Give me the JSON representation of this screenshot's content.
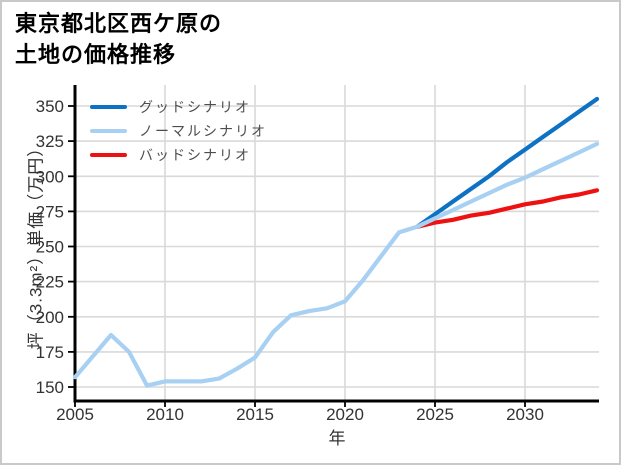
{
  "page": {
    "title_line1": "東京都北区西ケ原の",
    "title_line2": "土地の価格推移"
  },
  "chart_data": {
    "type": "line",
    "title": "東京都北区西ケ原の土地の価格推移",
    "xlabel": "年",
    "ylabel": "坪（3.3m²）単価（万円）",
    "xlim": [
      2005,
      2034
    ],
    "ylim": [
      150,
      350
    ],
    "x_ticks": [
      2005,
      2010,
      2015,
      2020,
      2025,
      2030
    ],
    "y_ticks": [
      150,
      175,
      200,
      225,
      250,
      275,
      300,
      325,
      350
    ],
    "grid": true,
    "legend_position": "top-left",
    "colors": {
      "grid": "#d9d9d9",
      "axis": "#000000",
      "tick_label": "#333333",
      "legend_text": "#4d4d4d"
    },
    "series": [
      {
        "key": "good",
        "name": "グッドシナリオ",
        "color": "#0e72c4",
        "x": [
          2024,
          2025,
          2026,
          2027,
          2028,
          2029,
          2030,
          2031,
          2032,
          2033,
          2034
        ],
        "values": [
          264,
          273,
          282,
          291,
          300,
          310,
          319,
          328,
          337,
          346,
          355
        ]
      },
      {
        "key": "normal",
        "name": "ノーマルシナリオ",
        "color": "#a7d0f3",
        "x": [
          2005,
          2006,
          2007,
          2008,
          2009,
          2010,
          2011,
          2012,
          2013,
          2014,
          2015,
          2016,
          2017,
          2018,
          2019,
          2020,
          2021,
          2022,
          2023,
          2024,
          2025,
          2026,
          2027,
          2028,
          2029,
          2030,
          2031,
          2032,
          2033,
          2034
        ],
        "values": [
          157,
          172,
          187,
          175,
          151,
          154,
          154,
          154,
          156,
          163,
          171,
          189,
          201,
          204,
          206,
          211,
          226,
          243,
          260,
          264,
          270,
          276,
          282,
          288,
          294,
          299,
          305,
          311,
          317,
          323
        ]
      },
      {
        "key": "bad",
        "name": "バッドシナリオ",
        "color": "#ee1111",
        "x": [
          2024,
          2025,
          2026,
          2027,
          2028,
          2029,
          2030,
          2031,
          2032,
          2033,
          2034
        ],
        "values": [
          264,
          267,
          269,
          272,
          274,
          277,
          280,
          282,
          285,
          287,
          290
        ]
      }
    ]
  }
}
